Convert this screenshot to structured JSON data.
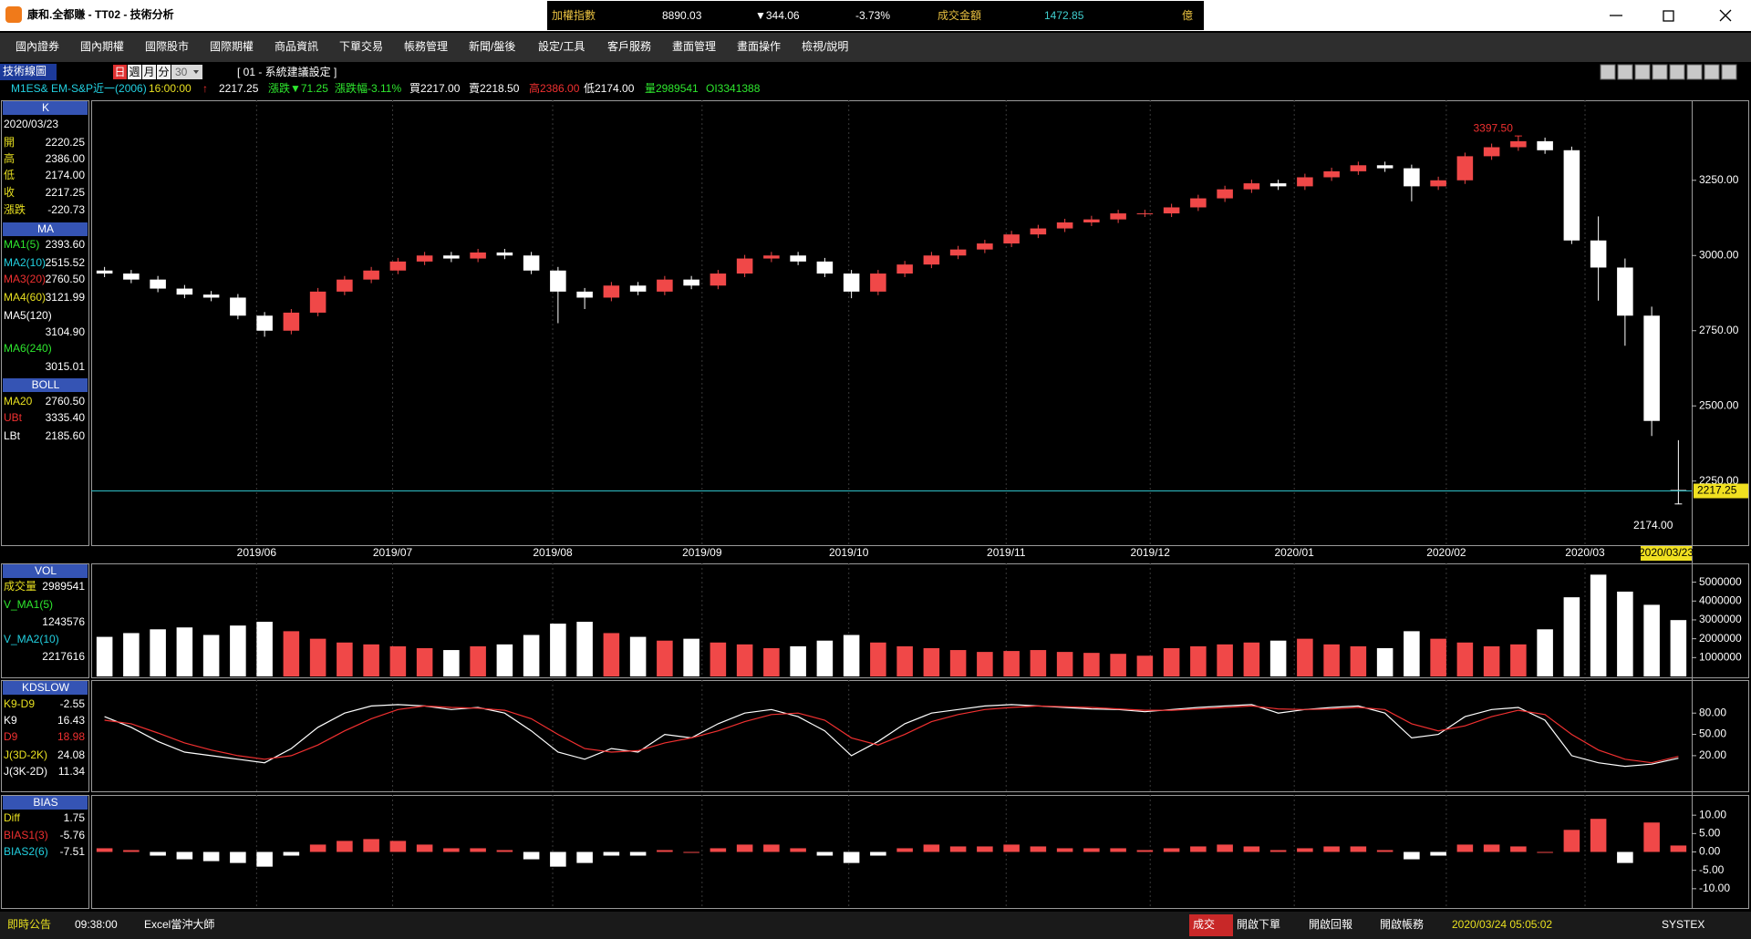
{
  "title_bar": {
    "app": "康和.全都賺 - TT02 - 技術分析"
  },
  "ticker": {
    "name": "加權指數",
    "value": "8890.03",
    "change": "▼344.06",
    "pct": "-3.73%",
    "turnover_label": "成交金額",
    "turnover": "1472.85",
    "unit": "億"
  },
  "menu": [
    "國內證券",
    "國內期權",
    "國際股市",
    "國際期權",
    "商品資訊",
    "下單交易",
    "帳務管理",
    "新聞/盤後",
    "設定/工具",
    "客戶服務",
    "畫面管理",
    "畫面操作",
    "檢視/說明"
  ],
  "toolbar": {
    "label": "技術線圖",
    "periods": [
      "日",
      "週",
      "月",
      "分"
    ],
    "minutes": "30",
    "preset": "[ 01 - 系統建議設定 ]"
  },
  "quote": [
    {
      "text": "M1ES& EM-S&P近一(2006)",
      "color": "#22d0e0"
    },
    {
      "text": "16:00:00",
      "color": "#e8e020"
    },
    {
      "text": "↑",
      "color": "#f03030"
    },
    {
      "text": "2217.25",
      "color": "#ffffff"
    },
    {
      "text": "漲跌▼71.25",
      "color": "#2ee82e"
    },
    {
      "text": "漲跌幅-3.11%",
      "color": "#2ee82e"
    },
    {
      "text": "買2217.00",
      "color": "#ffffff"
    },
    {
      "text": "賣2218.50",
      "color": "#ffffff"
    },
    {
      "text": "高2386.00",
      "color": "#f03030"
    },
    {
      "text": "低2174.00",
      "color": "#ffffff"
    },
    {
      "text": "量2989541",
      "color": "#2ee82e"
    },
    {
      "text": "OI3341388",
      "color": "#2ee82e"
    }
  ],
  "left_panel": [
    {
      "title": "K",
      "date": "2020/03/23",
      "rows": [
        {
          "label": "開",
          "value": "2220.25",
          "color": "#e8e020"
        },
        {
          "label": "高",
          "value": "2386.00",
          "color": "#e8e020"
        },
        {
          "label": "低",
          "value": "2174.00",
          "color": "#e8e020"
        },
        {
          "label": "收",
          "value": "2217.25",
          "color": "#e8e020"
        },
        {
          "label": "漲跌",
          "value": "-220.73",
          "color": "#e8e020"
        }
      ]
    },
    {
      "title": "MA",
      "rows": [
        {
          "label": "MA1(5)",
          "value": "2393.60",
          "color": "#2ee82e"
        },
        {
          "label": "MA2(10)",
          "value": "2515.52",
          "color": "#22d0e0"
        },
        {
          "label": "MA3(20)",
          "value": "2760.50",
          "color": "#f03030"
        },
        {
          "label": "MA4(60)",
          "value": "3121.99",
          "color": "#e8e020"
        },
        {
          "label": "MA5(120)",
          "value": "3104.90",
          "color": "#ffffff"
        },
        {
          "label": "MA6(240)",
          "value": "3015.01",
          "color": "#2ee82e"
        }
      ]
    },
    {
      "title": "BOLL",
      "rows": [
        {
          "label": "MA20",
          "value": "2760.50",
          "color": "#e8e020"
        },
        {
          "label": "UBt",
          "value": "3335.40",
          "color": "#f03030"
        },
        {
          "label": "LBt",
          "value": "2185.60",
          "color": "#ffffff"
        }
      ]
    },
    {
      "title": "VOL",
      "rows": [
        {
          "label": "成交量",
          "value": "2989541",
          "color": "#e8e020"
        },
        {
          "label": "V_MA1(5)",
          "value": "1243576",
          "color": "#2ee82e"
        },
        {
          "label": "V_MA2(10)",
          "value": "2217616",
          "color": "#22d0e0"
        }
      ]
    },
    {
      "title": "KDSLOW",
      "rows": [
        {
          "label": "K9-D9",
          "value": "-2.55",
          "color": "#e8e020"
        },
        {
          "label": "J(3D-2K)",
          "value": "24.08",
          "color": "#e8e020"
        },
        {
          "label": "J(3K-2D)",
          "value": "11.34",
          "color": "#ffffff"
        }
      ]
    },
    {
      "title": "BIAS",
      "rows": [
        {
          "label": "Diff",
          "value": "1.75",
          "color": "#e8e020"
        },
        {
          "label": "BIAS1(3)",
          "value": "-5.76",
          "color": "#f03030"
        },
        {
          "label": "BIAS2(6)",
          "value": "-7.51",
          "color": "#22d0e0"
        }
      ]
    }
  ],
  "chart_data": [
    {
      "type": "candlestick",
      "up_color": "#f04848",
      "down_color": "#ffffff",
      "grid": true,
      "xlim": [
        0,
        60
      ],
      "xticks": [
        {
          "value": 6.2,
          "label": "2019/06"
        },
        {
          "value": 11.3,
          "label": "2019/07"
        },
        {
          "value": 17.3,
          "label": "2019/08"
        },
        {
          "value": 22.9,
          "label": "2019/09"
        },
        {
          "value": 28.4,
          "label": "2019/10"
        },
        {
          "value": 34.3,
          "label": "2019/11"
        },
        {
          "value": 39.7,
          "label": "2019/12"
        },
        {
          "value": 45.1,
          "label": "2020/01"
        },
        {
          "value": 50.8,
          "label": "2020/02"
        },
        {
          "value": 56.0,
          "label": "2020/03"
        }
      ],
      "cursor_date": "2020/03/23",
      "ylim": [
        2040,
        3510
      ],
      "yticks": [
        {
          "value": 2250,
          "label": "2250.00"
        },
        {
          "value": 2500,
          "label": "2500.00"
        },
        {
          "value": 2750,
          "label": "2750.00"
        },
        {
          "value": 3000,
          "label": "3000.00"
        },
        {
          "value": 3250,
          "label": "3250.00"
        }
      ],
      "last_price": {
        "value": 2217.25,
        "label": "2217.25"
      },
      "annotations": [
        {
          "index": 53,
          "value": 3397.5,
          "label": "3397.50",
          "color": "#f03030"
        },
        {
          "index": 59,
          "value": 2174,
          "label": "2174.00",
          "color": "#ffffff"
        }
      ],
      "ohlc": [
        [
          2950,
          2962,
          2928,
          2940
        ],
        [
          2940,
          2952,
          2908,
          2920
        ],
        [
          2920,
          2932,
          2878,
          2890
        ],
        [
          2890,
          2902,
          2858,
          2870
        ],
        [
          2870,
          2882,
          2848,
          2860
        ],
        [
          2860,
          2872,
          2788,
          2800
        ],
        [
          2800,
          2812,
          2730,
          2750
        ],
        [
          2750,
          2822,
          2738,
          2810
        ],
        [
          2810,
          2892,
          2798,
          2880
        ],
        [
          2880,
          2932,
          2868,
          2920
        ],
        [
          2920,
          2962,
          2908,
          2950
        ],
        [
          2950,
          2992,
          2938,
          2980
        ],
        [
          2980,
          3012,
          2968,
          3000
        ],
        [
          3000,
          3012,
          2978,
          2990
        ],
        [
          2990,
          3022,
          2978,
          3010
        ],
        [
          3010,
          3022,
          2988,
          3000
        ],
        [
          3000,
          3012,
          2938,
          2950
        ],
        [
          2950,
          2962,
          2775,
          2880
        ],
        [
          2880,
          2892,
          2822,
          2860
        ],
        [
          2860,
          2912,
          2848,
          2900
        ],
        [
          2900,
          2912,
          2868,
          2880
        ],
        [
          2880,
          2932,
          2868,
          2920
        ],
        [
          2920,
          2932,
          2888,
          2900
        ],
        [
          2900,
          2952,
          2888,
          2940
        ],
        [
          2940,
          3002,
          2928,
          2990
        ],
        [
          2990,
          3012,
          2978,
          3000
        ],
        [
          3000,
          3012,
          2968,
          2980
        ],
        [
          2980,
          2992,
          2928,
          2940
        ],
        [
          2940,
          2952,
          2858,
          2880
        ],
        [
          2880,
          2952,
          2868,
          2940
        ],
        [
          2940,
          2982,
          2928,
          2970
        ],
        [
          2970,
          3012,
          2958,
          3000
        ],
        [
          3000,
          3032,
          2988,
          3020
        ],
        [
          3020,
          3052,
          3008,
          3040
        ],
        [
          3040,
          3082,
          3028,
          3070
        ],
        [
          3070,
          3102,
          3058,
          3090
        ],
        [
          3090,
          3122,
          3078,
          3110
        ],
        [
          3110,
          3132,
          3098,
          3120
        ],
        [
          3120,
          3152,
          3108,
          3140
        ],
        [
          3140,
          3152,
          3128,
          3140
        ],
        [
          3140,
          3172,
          3128,
          3160
        ],
        [
          3160,
          3202,
          3148,
          3190
        ],
        [
          3190,
          3232,
          3178,
          3220
        ],
        [
          3220,
          3252,
          3208,
          3240
        ],
        [
          3240,
          3252,
          3218,
          3230
        ],
        [
          3230,
          3272,
          3218,
          3260
        ],
        [
          3260,
          3292,
          3248,
          3280
        ],
        [
          3280,
          3312,
          3268,
          3300
        ],
        [
          3300,
          3312,
          3278,
          3290
        ],
        [
          3290,
          3302,
          3180,
          3230
        ],
        [
          3230,
          3262,
          3218,
          3250
        ],
        [
          3250,
          3342,
          3238,
          3330
        ],
        [
          3330,
          3372,
          3318,
          3360
        ],
        [
          3360,
          3397.5,
          3348,
          3380
        ],
        [
          3380,
          3392,
          3338,
          3350
        ],
        [
          3350,
          3362,
          3038,
          3050
        ],
        [
          3050,
          3130,
          2850,
          2960
        ],
        [
          2960,
          2990,
          2700,
          2800
        ],
        [
          2800,
          2830,
          2400,
          2450
        ],
        [
          2220.25,
          2386,
          2174,
          2217.25
        ]
      ]
    },
    {
      "type": "bar",
      "up_color": "#f04848",
      "down_color": "#ffffff",
      "xlim": [
        0,
        60
      ],
      "ylim": [
        0,
        5900000
      ],
      "yticks": [
        1000000,
        2000000,
        3000000,
        4000000,
        5000000
      ],
      "values": [
        2100000,
        2300000,
        2500000,
        2600000,
        2200000,
        2700000,
        2900000,
        2400000,
        2000000,
        1800000,
        1700000,
        1600000,
        1500000,
        1400000,
        1600000,
        1700000,
        2200000,
        2800000,
        2900000,
        2300000,
        2100000,
        1900000,
        2000000,
        1800000,
        1700000,
        1500000,
        1600000,
        1900000,
        2200000,
        1800000,
        1600000,
        1500000,
        1400000,
        1300000,
        1350000,
        1400000,
        1300000,
        1250000,
        1200000,
        1100000,
        1500000,
        1600000,
        1700000,
        1800000,
        1900000,
        2000000,
        1700000,
        1600000,
        1500000,
        2400000,
        2000000,
        1800000,
        1600000,
        1700000,
        2500000,
        4200000,
        5400000,
        4500000,
        3800000,
        2989541
      ]
    },
    {
      "type": "line",
      "xlim": [
        0,
        60
      ],
      "ylim": [
        -29,
        124
      ],
      "yticks": [
        {
          "value": 20,
          "label": "20.00"
        },
        {
          "value": 50,
          "label": "50.00"
        },
        {
          "value": 80,
          "label": "80.00"
        }
      ],
      "series": [
        {
          "name": "K9",
          "color": "#ffffff",
          "current": "16.43",
          "values": [
            75,
            60,
            40,
            25,
            20,
            15,
            10,
            30,
            60,
            80,
            90,
            92,
            90,
            85,
            88,
            80,
            55,
            25,
            15,
            30,
            25,
            50,
            45,
            65,
            80,
            85,
            75,
            55,
            20,
            40,
            65,
            80,
            85,
            90,
            92,
            90,
            88,
            86,
            85,
            82,
            85,
            88,
            90,
            92,
            80,
            85,
            88,
            90,
            80,
            45,
            50,
            75,
            85,
            88,
            70,
            20,
            10,
            5,
            8,
            16.43
          ]
        },
        {
          "name": "D9",
          "color": "#f03030",
          "current": "18.98",
          "values": [
            70,
            65,
            52,
            38,
            28,
            20,
            15,
            20,
            35,
            55,
            72,
            85,
            90,
            88,
            87,
            84,
            72,
            50,
            30,
            25,
            27,
            38,
            45,
            55,
            68,
            78,
            80,
            70,
            45,
            35,
            50,
            68,
            78,
            85,
            88,
            90,
            89,
            88,
            86,
            84,
            84,
            86,
            88,
            90,
            86,
            85,
            86,
            88,
            85,
            65,
            55,
            62,
            75,
            84,
            78,
            50,
            28,
            15,
            10,
            18.98
          ]
        }
      ]
    },
    {
      "type": "bar",
      "up_color": "#f04848",
      "down_color": "#ffffff",
      "xlim": [
        0,
        60
      ],
      "ylim": [
        -15,
        15
      ],
      "yticks": [
        {
          "value": 10,
          "label": "10.00"
        },
        {
          "value": 5,
          "label": "5.00"
        },
        {
          "value": 0,
          "label": "0.00"
        },
        {
          "value": -5,
          "label": "-5.00"
        },
        {
          "value": -10,
          "label": "-10.00"
        }
      ],
      "values": [
        1,
        0.5,
        -1,
        -2,
        -2.5,
        -3,
        -4,
        -1,
        2,
        3,
        3.5,
        3,
        2,
        1,
        1,
        0.5,
        -2,
        -4,
        -3,
        -1,
        -1,
        0.5,
        0,
        1,
        2,
        2,
        1,
        -1,
        -3,
        -1,
        1,
        2,
        1.5,
        1.5,
        2,
        1.5,
        1,
        1,
        1,
        0.5,
        1,
        1.5,
        2,
        1.5,
        0.5,
        1,
        1.5,
        1.5,
        0.5,
        -2,
        -1,
        2,
        2,
        1.5,
        0,
        6,
        9,
        -3,
        8,
        1.75
      ]
    }
  ],
  "status": {
    "left": [
      "即時公告",
      "09:38:00",
      "Excel當沖大師"
    ],
    "right": [
      "成交",
      "開啟下單",
      "開啟回報",
      "開啟帳務",
      "2020/03/24 05:05:02",
      "SYSTEX"
    ]
  }
}
